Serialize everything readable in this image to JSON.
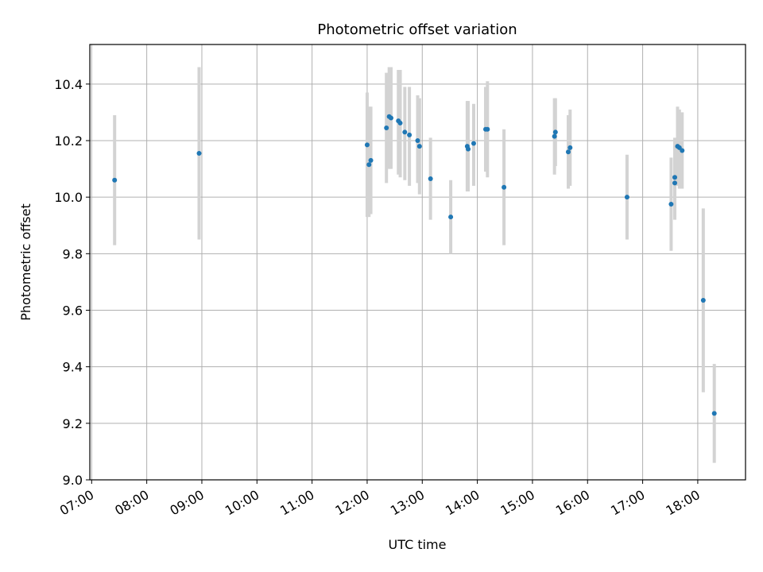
{
  "chart_data": {
    "type": "scatter",
    "title": "Photometric offset variation",
    "xlabel": "UTC time",
    "ylabel": "Photometric offset",
    "xlim": [
      "06:58",
      "18:52"
    ],
    "ylim": [
      9.0,
      10.54
    ],
    "grid": true,
    "xticks": [
      "07:00",
      "08:00",
      "09:00",
      "10:00",
      "11:00",
      "12:00",
      "13:00",
      "14:00",
      "15:00",
      "16:00",
      "17:00",
      "18:00"
    ],
    "yticks": [
      "9.0",
      "9.2",
      "9.4",
      "9.6",
      "9.8",
      "10.0",
      "10.2",
      "10.4"
    ],
    "colors": {
      "point": "#1f77b4",
      "errorbar": "#d3d3d3",
      "grid": "#b0b0b0"
    },
    "series": [
      {
        "points": [
          {
            "x": "07:25",
            "y": 10.06,
            "ylo": 9.83,
            "yhi": 10.29
          },
          {
            "x": "08:57",
            "y": 10.155,
            "ylo": 9.85,
            "yhi": 10.46
          },
          {
            "x": "12:00",
            "y": 10.185,
            "ylo": 9.93,
            "yhi": 10.37
          },
          {
            "x": "12:02",
            "y": 10.115,
            "ylo": 9.93,
            "yhi": 10.32
          },
          {
            "x": "12:04",
            "y": 10.13,
            "ylo": 9.94,
            "yhi": 10.32
          },
          {
            "x": "12:21",
            "y": 10.245,
            "ylo": 10.05,
            "yhi": 10.44
          },
          {
            "x": "12:24",
            "y": 10.285,
            "ylo": 10.1,
            "yhi": 10.46
          },
          {
            "x": "12:26",
            "y": 10.28,
            "ylo": 10.1,
            "yhi": 10.46
          },
          {
            "x": "12:34",
            "y": 10.27,
            "ylo": 10.08,
            "yhi": 10.45
          },
          {
            "x": "12:36",
            "y": 10.262,
            "ylo": 10.07,
            "yhi": 10.45
          },
          {
            "x": "12:41",
            "y": 10.23,
            "ylo": 10.06,
            "yhi": 10.39
          },
          {
            "x": "12:46",
            "y": 10.22,
            "ylo": 10.04,
            "yhi": 10.39
          },
          {
            "x": "12:55",
            "y": 10.2,
            "ylo": 10.05,
            "yhi": 10.36
          },
          {
            "x": "12:57",
            "y": 10.18,
            "ylo": 10.01,
            "yhi": 10.35
          },
          {
            "x": "13:09",
            "y": 10.065,
            "ylo": 9.92,
            "yhi": 10.21
          },
          {
            "x": "13:31",
            "y": 9.93,
            "ylo": 9.8,
            "yhi": 10.06
          },
          {
            "x": "13:49",
            "y": 10.18,
            "ylo": 10.02,
            "yhi": 10.34
          },
          {
            "x": "13:50",
            "y": 10.17,
            "ylo": 10.02,
            "yhi": 10.34
          },
          {
            "x": "13:56",
            "y": 10.19,
            "ylo": 10.04,
            "yhi": 10.33
          },
          {
            "x": "14:09",
            "y": 10.24,
            "ylo": 10.09,
            "yhi": 10.39
          },
          {
            "x": "14:11",
            "y": 10.24,
            "ylo": 10.07,
            "yhi": 10.41
          },
          {
            "x": "14:29",
            "y": 10.035,
            "ylo": 9.83,
            "yhi": 10.24
          },
          {
            "x": "15:24",
            "y": 10.215,
            "ylo": 10.08,
            "yhi": 10.35
          },
          {
            "x": "15:25",
            "y": 10.23,
            "ylo": 10.11,
            "yhi": 10.35
          },
          {
            "x": "15:39",
            "y": 10.16,
            "ylo": 10.03,
            "yhi": 10.29
          },
          {
            "x": "15:41",
            "y": 10.175,
            "ylo": 10.04,
            "yhi": 10.31
          },
          {
            "x": "16:43",
            "y": 10.0,
            "ylo": 9.85,
            "yhi": 10.15
          },
          {
            "x": "17:31",
            "y": 9.975,
            "ylo": 9.81,
            "yhi": 10.14
          },
          {
            "x": "17:35",
            "y": 10.07,
            "ylo": 9.92,
            "yhi": 10.21
          },
          {
            "x": "17:35",
            "y": 10.05,
            "ylo": 9.93,
            "yhi": 10.18
          },
          {
            "x": "17:38",
            "y": 10.18,
            "ylo": 10.04,
            "yhi": 10.32
          },
          {
            "x": "17:40",
            "y": 10.175,
            "ylo": 10.03,
            "yhi": 10.31
          },
          {
            "x": "17:43",
            "y": 10.165,
            "ylo": 10.03,
            "yhi": 10.3
          },
          {
            "x": "18:06",
            "y": 9.635,
            "ylo": 9.31,
            "yhi": 9.96
          },
          {
            "x": "18:18",
            "y": 9.235,
            "ylo": 9.06,
            "yhi": 9.41
          }
        ]
      }
    ]
  }
}
